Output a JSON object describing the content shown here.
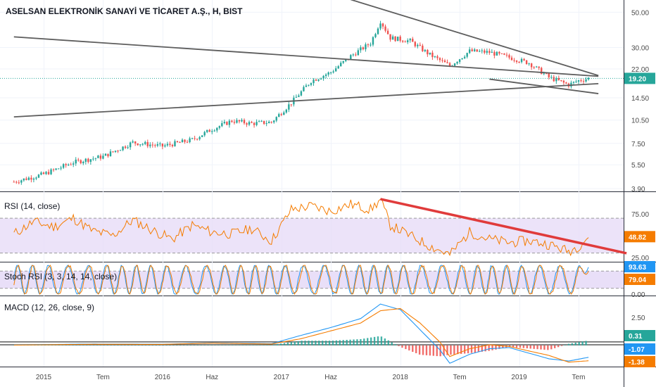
{
  "chart_title": "ASELSAN ELEKTRONİK SANAYİ VE TİCARET A.Ş., H, BIST",
  "chart_data": [
    {
      "type": "candlestick",
      "title": "ASELSAN ELEKTRONİK SANAYİ VE TİCARET A.Ş., H, BIST",
      "log_scale": true,
      "ylim": [
        3.9,
        55
      ],
      "y_ticks": [
        "50.00",
        "30.00",
        "22.00",
        "14.50",
        "10.50",
        "7.50",
        "5.50",
        "3.90"
      ],
      "y_tick_values": [
        50,
        30,
        22,
        14.5,
        10.5,
        7.5,
        5.5,
        3.9
      ],
      "last_price": 19.2,
      "last_price_label": "19.20",
      "price_path": [
        [
          "2014-10",
          4.3
        ],
        [
          "2015-01",
          4.8
        ],
        [
          "2015-04",
          5.7
        ],
        [
          "2015-07",
          6.2
        ],
        [
          "2015-10",
          7.6
        ],
        [
          "2016-01",
          7.2
        ],
        [
          "2016-04",
          7.9
        ],
        [
          "2016-06",
          9.2
        ],
        [
          "2016-08",
          10.4
        ],
        [
          "2016-10",
          10.0
        ],
        [
          "2016-12",
          10.2
        ],
        [
          "2017-02",
          13.5
        ],
        [
          "2017-04",
          18.5
        ],
        [
          "2017-06",
          21.0
        ],
        [
          "2017-08",
          26.5
        ],
        [
          "2017-10",
          32.0
        ],
        [
          "2017-11",
          44.0
        ],
        [
          "2017-12",
          34.5
        ],
        [
          "2018-02",
          33.0
        ],
        [
          "2018-04",
          27.0
        ],
        [
          "2018-06",
          23.0
        ],
        [
          "2018-08",
          28.5
        ],
        [
          "2018-10",
          28.0
        ],
        [
          "2018-12",
          26.0
        ],
        [
          "2019-02",
          24.0
        ],
        [
          "2019-04",
          19.5
        ],
        [
          "2019-06",
          17.5
        ],
        [
          "2019-07",
          18.6
        ],
        [
          "2019-08",
          19.2
        ]
      ],
      "trendlines": [
        {
          "from": [
            "2014-10",
            35.0
          ],
          "to": [
            "2019-09",
            19.8
          ]
        },
        {
          "from": [
            "2014-10",
            11.0
          ],
          "to": [
            "2019-09",
            17.8
          ]
        },
        {
          "from": [
            "2017-08",
            60.0
          ],
          "to": [
            "2019-09",
            20.0
          ]
        },
        {
          "from": [
            "2018-10",
            19.0
          ],
          "to": [
            "2019-09",
            15.4
          ]
        }
      ]
    },
    {
      "type": "line",
      "title": "RSI (14, close)",
      "ylim": [
        20,
        100
      ],
      "y_ticks": [
        "75.00",
        "25.00"
      ],
      "y_tick_values": [
        75,
        25
      ],
      "band": [
        30,
        70
      ],
      "last_value_label": "48.82",
      "last_value": 48.82,
      "series": [
        {
          "color": "#f57c00",
          "values": [
            [
              "2014-10",
              52
            ],
            [
              "2014-12",
              66
            ],
            [
              "2015-02",
              60
            ],
            [
              "2015-04",
              70
            ],
            [
              "2015-06",
              55
            ],
            [
              "2015-08",
              50
            ],
            [
              "2015-10",
              68
            ],
            [
              "2015-12",
              56
            ],
            [
              "2016-02",
              46
            ],
            [
              "2016-04",
              62
            ],
            [
              "2016-06",
              54
            ],
            [
              "2016-08",
              52
            ],
            [
              "2016-10",
              58
            ],
            [
              "2016-12",
              44
            ],
            [
              "2017-02",
              80
            ],
            [
              "2017-04",
              84
            ],
            [
              "2017-06",
              78
            ],
            [
              "2017-08",
              86
            ],
            [
              "2017-10",
              80
            ],
            [
              "2017-11",
              91
            ],
            [
              "2017-12",
              62
            ],
            [
              "2018-02",
              50
            ],
            [
              "2018-04",
              38
            ],
            [
              "2018-06",
              28
            ],
            [
              "2018-08",
              54
            ],
            [
              "2018-10",
              46
            ],
            [
              "2018-12",
              42
            ],
            [
              "2019-02",
              44
            ],
            [
              "2019-04",
              40
            ],
            [
              "2019-06",
              32
            ],
            [
              "2019-07",
              38
            ],
            [
              "2019-08",
              48.82
            ]
          ]
        }
      ],
      "trendline": {
        "from": [
          "2017-11",
          92
        ],
        "to": [
          "2019-09",
          33
        ],
        "color": "#e03b3b"
      }
    },
    {
      "type": "line",
      "title": "Stoch RSI (3, 3, 14, 14, close)",
      "ylim": [
        -5,
        110
      ],
      "y_ticks": [
        "0.00"
      ],
      "y_tick_values": [
        0
      ],
      "band": [
        20,
        80
      ],
      "last_values": [
        {
          "label": "93.63",
          "value": 93.63,
          "color": "#2196f3"
        },
        {
          "label": "79.04",
          "value": 79.04,
          "color": "#f57c00"
        }
      ],
      "series": [
        {
          "color": "#2196f3",
          "cycles": 34,
          "end": 93.63
        },
        {
          "color": "#f57c00",
          "cycles": 34,
          "end": 79.04
        }
      ]
    },
    {
      "type": "line",
      "title": "MACD (12, 26, close, 9)",
      "ylim": [
        -1.9,
        4.4
      ],
      "y_ticks": [
        "2.50"
      ],
      "y_tick_values": [
        2.5
      ],
      "last_values": [
        {
          "label": "0.31",
          "value": 0.31,
          "color": "#26a69a"
        },
        {
          "label": "-1.07",
          "value": -1.07,
          "color": "#2196f3"
        },
        {
          "label": "-1.38",
          "value": -1.38,
          "color": "#f57c00"
        }
      ],
      "series": [
        {
          "name": "macd",
          "color": "#2196f3",
          "values": [
            [
              "2014-10",
              0.05
            ],
            [
              "2015-06",
              0.12
            ],
            [
              "2016-01",
              0.1
            ],
            [
              "2016-06",
              0.22
            ],
            [
              "2016-12",
              0.15
            ],
            [
              "2017-03",
              0.9
            ],
            [
              "2017-06",
              1.6
            ],
            [
              "2017-09",
              2.4
            ],
            [
              "2017-11",
              3.7
            ],
            [
              "2018-01",
              3.2
            ],
            [
              "2018-03",
              1.4
            ],
            [
              "2018-05",
              -0.4
            ],
            [
              "2018-06",
              -1.6
            ],
            [
              "2018-08",
              -0.8
            ],
            [
              "2018-10",
              -0.3
            ],
            [
              "2018-12",
              -0.2
            ],
            [
              "2019-02",
              -0.7
            ],
            [
              "2019-04",
              -1.2
            ],
            [
              "2019-06",
              -1.4
            ],
            [
              "2019-08",
              -1.07
            ]
          ]
        },
        {
          "name": "signal",
          "color": "#f57c00",
          "values": [
            [
              "2014-10",
              0.03
            ],
            [
              "2015-06",
              0.1
            ],
            [
              "2016-01",
              0.09
            ],
            [
              "2016-06",
              0.2
            ],
            [
              "2016-12",
              0.12
            ],
            [
              "2017-03",
              0.6
            ],
            [
              "2017-06",
              1.3
            ],
            [
              "2017-09",
              2.0
            ],
            [
              "2017-11",
              3.1
            ],
            [
              "2018-01",
              3.3
            ],
            [
              "2018-03",
              2.0
            ],
            [
              "2018-05",
              0.3
            ],
            [
              "2018-06",
              -1.0
            ],
            [
              "2018-08",
              -0.3
            ],
            [
              "2018-10",
              0.05
            ],
            [
              "2018-12",
              -0.1
            ],
            [
              "2019-02",
              -0.5
            ],
            [
              "2019-04",
              -0.9
            ],
            [
              "2019-06",
              -1.5
            ],
            [
              "2019-08",
              -1.38
            ]
          ]
        }
      ],
      "histogram_note": "difference of macd and signal"
    }
  ],
  "x_axis": {
    "labels": [
      "2015",
      "Tem",
      "2016",
      "Haz",
      "2017",
      "Haz",
      "2018",
      "Tem",
      "2019",
      "Tem"
    ],
    "dates": [
      "2015-01",
      "2015-07",
      "2016-01",
      "2016-06",
      "2017-01",
      "2017-06",
      "2018-01",
      "2018-07",
      "2019-01",
      "2019-07"
    ],
    "range": [
      "2014-10",
      "2019-12"
    ]
  },
  "colors": {
    "up": "#26a69a",
    "down": "#ef5350",
    "line_gray": "#5d5d5d",
    "rsi_fill": "#e7dcf7",
    "last_price_badge": "#26a69a"
  }
}
